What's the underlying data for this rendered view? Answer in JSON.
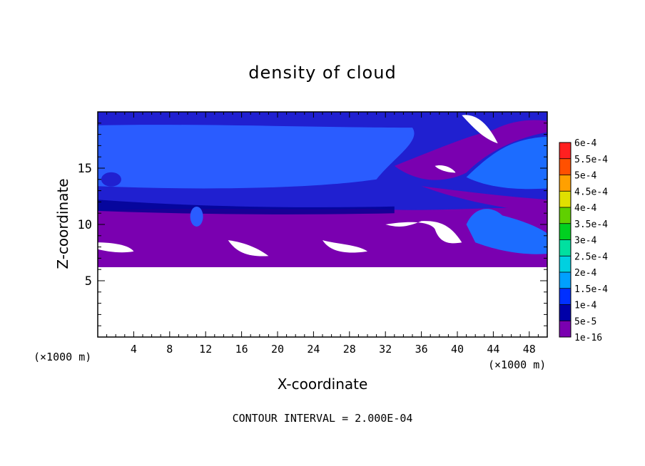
{
  "chart_data": {
    "type": "heatmap",
    "title": "density of cloud",
    "xlabel": "X-coordinate",
    "ylabel": "Z-coordinate",
    "x_unit": "(×1000 m)",
    "xlim": [
      0,
      50
    ],
    "ylim": [
      0,
      20
    ],
    "x_ticks": [
      4,
      8,
      12,
      16,
      20,
      24,
      28,
      32,
      36,
      40,
      44,
      48
    ],
    "y_ticks": [
      5,
      10,
      15
    ],
    "colorbar": {
      "labels": [
        "1e-16",
        "5e-5",
        "1e-4",
        "1.5e-4",
        "2e-4",
        "2.5e-4",
        "3e-4",
        "3.5e-4",
        "4e-4",
        "4.5e-4",
        "5e-4",
        "5.5e-4",
        "6e-4"
      ],
      "colors": [
        "#7a00b0",
        "#0000a8",
        "#0030ff",
        "#00a0ff",
        "#00d0e0",
        "#00e0a0",
        "#00d020",
        "#60d000",
        "#e0e000",
        "#ffa000",
        "#ff5000",
        "#ff2020",
        "#ff8080"
      ]
    },
    "field_colors": {
      "deep_blue": "#2020d0",
      "mid_blue": "#2a5cff",
      "light_blue": "#1c6cff",
      "purple": "#7a00b0",
      "dark_navy": "#000090"
    },
    "regions": {
      "cloud_base_z": 6.2,
      "purple_layer_top_z": 11.0,
      "upper_blue_top_z": 20.0
    },
    "contour_interval": "CONTOUR INTERVAL = 2.000E-04"
  }
}
